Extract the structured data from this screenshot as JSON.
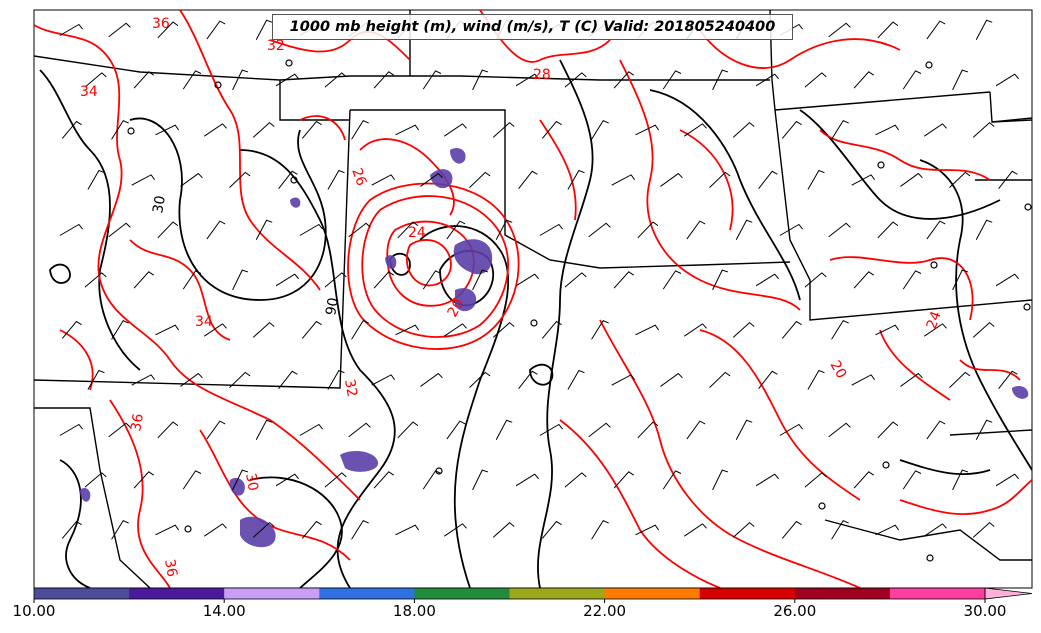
{
  "title": "1000 mb height (m), wind (m/s), T (C) Valid: 201805240400",
  "height_contour_color": "#000000",
  "temperature_contour_color": "#ff0000",
  "precip_fill_color": "#5b3fa8",
  "temperature_labels": [
    "36",
    "34",
    "32",
    "28",
    "26",
    "24",
    "32",
    "34",
    "36",
    "20",
    "20",
    "24",
    "36",
    "30"
  ],
  "height_labels": [
    "30",
    "90"
  ],
  "colorbar": {
    "colors": [
      "#4c4c9a",
      "#4b1a9c",
      "#c89ef7",
      "#3070e0",
      "#228b3c",
      "#9aa81a",
      "#ff7a00",
      "#d60000",
      "#a00020",
      "#ff3fa0"
    ],
    "overflow_color": "#ffb0d8",
    "tick_labels": [
      "10.00",
      "14.00",
      "18.00",
      "22.00",
      "26.00",
      "30.00"
    ],
    "range": [
      10,
      30
    ]
  },
  "layers": [
    "state-boundaries",
    "height-contours",
    "temperature-contours",
    "wind-barbs",
    "precipitation-shading"
  ]
}
